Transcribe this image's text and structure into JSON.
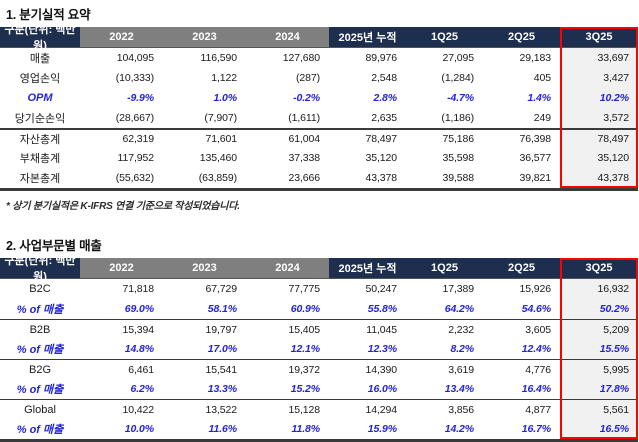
{
  "colors": {
    "header_navy": "#1d2e4e",
    "header_gray": "#7f7f7f",
    "highlight_border_red": "#fe0000",
    "highlight_fill": "#f1f1f1",
    "accent_blue_text": "#2323dd",
    "rule_dark": "#3a3a3a"
  },
  "highlight_column": "3Q25",
  "section1": {
    "title": "1. 분기실적 요약",
    "header": [
      "구분(단위: 백만원)",
      "2022",
      "2023",
      "2024",
      "2025년 누적",
      "1Q25",
      "2Q25",
      "3Q25"
    ],
    "rows": [
      {
        "label": "매출",
        "values": [
          "104,095",
          "116,590",
          "127,680",
          "89,976",
          "27,095",
          "29,183",
          "33,697"
        ]
      },
      {
        "label": "영업손익",
        "values": [
          "(10,333)",
          "1,122",
          "(287)",
          "2,548",
          "(1,284)",
          "405",
          "3,427"
        ]
      },
      {
        "label": "OPM",
        "values": [
          "-9.9%",
          "1.0%",
          "-0.2%",
          "2.8%",
          "-4.7%",
          "1.4%",
          "10.2%"
        ]
      },
      {
        "label": "당기순손익",
        "values": [
          "(28,667)",
          "(7,907)",
          "(1,611)",
          "2,635",
          "(1,186)",
          "249",
          "3,572"
        ]
      },
      {
        "label": "자산총계",
        "values": [
          "62,319",
          "71,601",
          "61,004",
          "78,497",
          "75,186",
          "76,398",
          "78,497"
        ]
      },
      {
        "label": "부채총계",
        "values": [
          "117,952",
          "135,460",
          "37,338",
          "35,120",
          "35,598",
          "36,577",
          "35,120"
        ]
      },
      {
        "label": "자본총계",
        "values": [
          "(55,632)",
          "(63,859)",
          "23,666",
          "43,378",
          "39,588",
          "39,821",
          "43,378"
        ]
      }
    ],
    "footnote": "* 상기 분기실적은 K-IFRS 연결 기준으로 작성되었습니다."
  },
  "section2": {
    "title": "2. 사업부문별 매출",
    "header": [
      "구분(단위: 백만원)",
      "2022",
      "2023",
      "2024",
      "2025년 누적",
      "1Q25",
      "2Q25",
      "3Q25"
    ],
    "rows": [
      {
        "label": "B2C",
        "values": [
          "71,818",
          "67,729",
          "77,775",
          "50,247",
          "17,389",
          "15,926",
          "16,932"
        ]
      },
      {
        "label": "% of 매출",
        "values": [
          "69.0%",
          "58.1%",
          "60.9%",
          "55.8%",
          "64.2%",
          "54.6%",
          "50.2%"
        ]
      },
      {
        "label": "B2B",
        "values": [
          "15,394",
          "19,797",
          "15,405",
          "11,045",
          "2,232",
          "3,605",
          "5,209"
        ]
      },
      {
        "label": "% of 매출",
        "values": [
          "14.8%",
          "17.0%",
          "12.1%",
          "12.3%",
          "8.2%",
          "12.4%",
          "15.5%"
        ]
      },
      {
        "label": "B2G",
        "values": [
          "6,461",
          "15,541",
          "19,372",
          "14,390",
          "3,619",
          "4,776",
          "5,995"
        ]
      },
      {
        "label": "% of 매출",
        "values": [
          "6.2%",
          "13.3%",
          "15.2%",
          "16.0%",
          "13.4%",
          "16.4%",
          "17.8%"
        ]
      },
      {
        "label": "Global",
        "values": [
          "10,422",
          "13,522",
          "15,128",
          "14,294",
          "3,856",
          "4,877",
          "5,561"
        ]
      },
      {
        "label": "% of 매출",
        "values": [
          "10.0%",
          "11.6%",
          "11.8%",
          "15.9%",
          "14.2%",
          "16.7%",
          "16.5%"
        ]
      }
    ]
  }
}
